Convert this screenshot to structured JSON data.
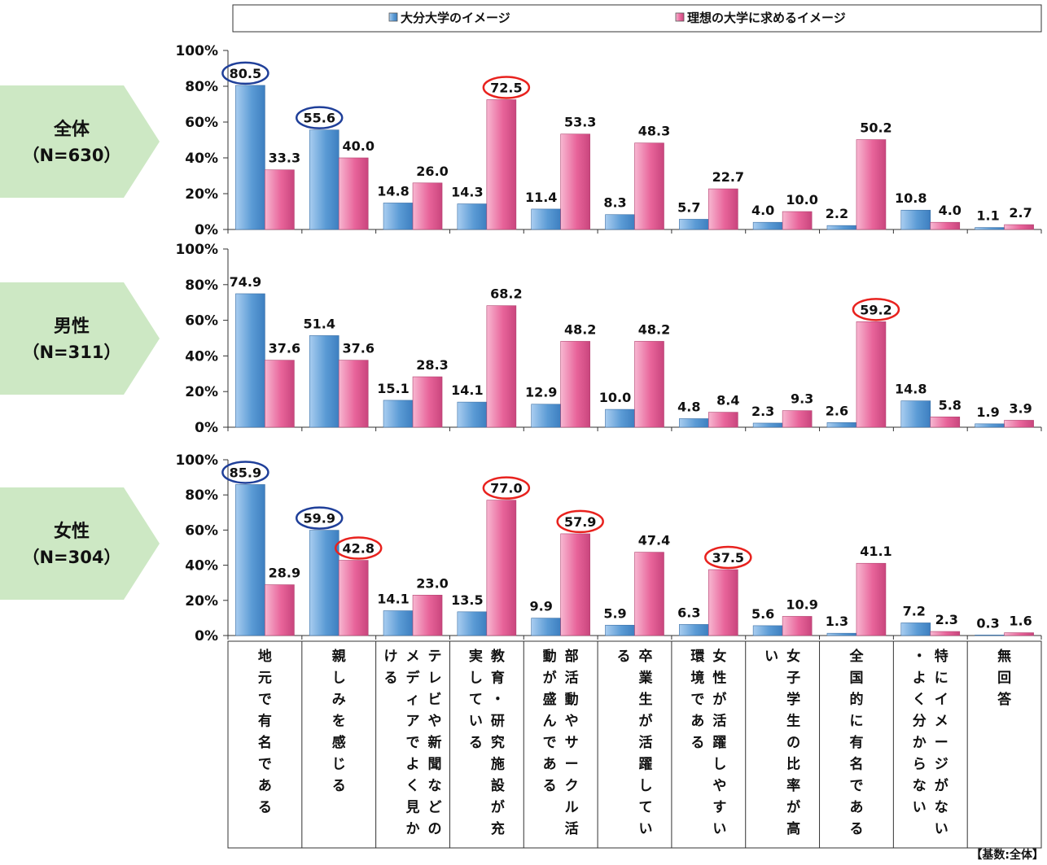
{
  "legend": {
    "series1_label": "大分大学のイメージ",
    "series2_label": "理想の大学に求めるイメージ"
  },
  "footer_note": "【基数:全体】",
  "colors": {
    "series1": "#5b9bd5",
    "series2": "#e8649a",
    "banner": "#cde8c4",
    "circle_blue": "#1f3f99",
    "circle_red": "#e8221e"
  },
  "categories": [
    "地元で有名である",
    "親しみを感じる",
    "テレビや新聞などのメディアでよく見かける",
    "教育・研究施設が充実している",
    "部活動やサークル活動が盛んである",
    "卒業生が活躍している",
    "女性が活躍しやすい環境である",
    "女子学生の比率が高い",
    "全国的に有名である",
    "特にイメージがない・よく分からない",
    "無回答"
  ],
  "chart_data": [
    {
      "type": "bar",
      "group": "全体",
      "n_label": "（N=630）",
      "ylim": [
        0,
        100
      ],
      "yticks": [
        "0%",
        "20%",
        "40%",
        "60%",
        "80%",
        "100%"
      ],
      "series": [
        {
          "name": "大分大学のイメージ",
          "values": [
            80.5,
            55.6,
            14.8,
            14.3,
            11.4,
            8.3,
            5.7,
            4.0,
            2.2,
            10.8,
            1.1
          ]
        },
        {
          "name": "理想の大学に求めるイメージ",
          "values": [
            33.3,
            40.0,
            26.0,
            72.5,
            53.3,
            48.3,
            22.7,
            10.0,
            50.2,
            4.0,
            2.7
          ]
        }
      ],
      "highlights": [
        {
          "series": 0,
          "index": 0,
          "color": "blue"
        },
        {
          "series": 0,
          "index": 1,
          "color": "blue"
        },
        {
          "series": 1,
          "index": 3,
          "color": "red"
        }
      ]
    },
    {
      "type": "bar",
      "group": "男性",
      "n_label": "（N=311）",
      "ylim": [
        0,
        100
      ],
      "yticks": [
        "0%",
        "20%",
        "40%",
        "60%",
        "80%",
        "100%"
      ],
      "series": [
        {
          "name": "大分大学のイメージ",
          "values": [
            74.9,
            51.4,
            15.1,
            14.1,
            12.9,
            10.0,
            4.8,
            2.3,
            2.6,
            14.8,
            1.9
          ]
        },
        {
          "name": "理想の大学に求めるイメージ",
          "values": [
            37.6,
            37.6,
            28.3,
            68.2,
            48.2,
            48.2,
            8.4,
            9.3,
            59.2,
            5.8,
            3.9
          ]
        }
      ],
      "highlights": [
        {
          "series": 1,
          "index": 8,
          "color": "red"
        }
      ]
    },
    {
      "type": "bar",
      "group": "女性",
      "n_label": "（N=304）",
      "ylim": [
        0,
        100
      ],
      "yticks": [
        "0%",
        "20%",
        "40%",
        "60%",
        "80%",
        "100%"
      ],
      "series": [
        {
          "name": "大分大学のイメージ",
          "values": [
            85.9,
            59.9,
            14.1,
            13.5,
            9.9,
            5.9,
            6.3,
            5.6,
            1.3,
            7.2,
            0.3
          ]
        },
        {
          "name": "理想の大学に求めるイメージ",
          "values": [
            28.9,
            42.8,
            23.0,
            77.0,
            57.9,
            47.4,
            37.5,
            10.9,
            41.1,
            2.3,
            1.6
          ]
        }
      ],
      "highlights": [
        {
          "series": 0,
          "index": 0,
          "color": "blue"
        },
        {
          "series": 0,
          "index": 1,
          "color": "blue"
        },
        {
          "series": 1,
          "index": 1,
          "color": "red"
        },
        {
          "series": 1,
          "index": 3,
          "color": "red"
        },
        {
          "series": 1,
          "index": 4,
          "color": "red"
        },
        {
          "series": 1,
          "index": 6,
          "color": "red"
        }
      ]
    }
  ]
}
